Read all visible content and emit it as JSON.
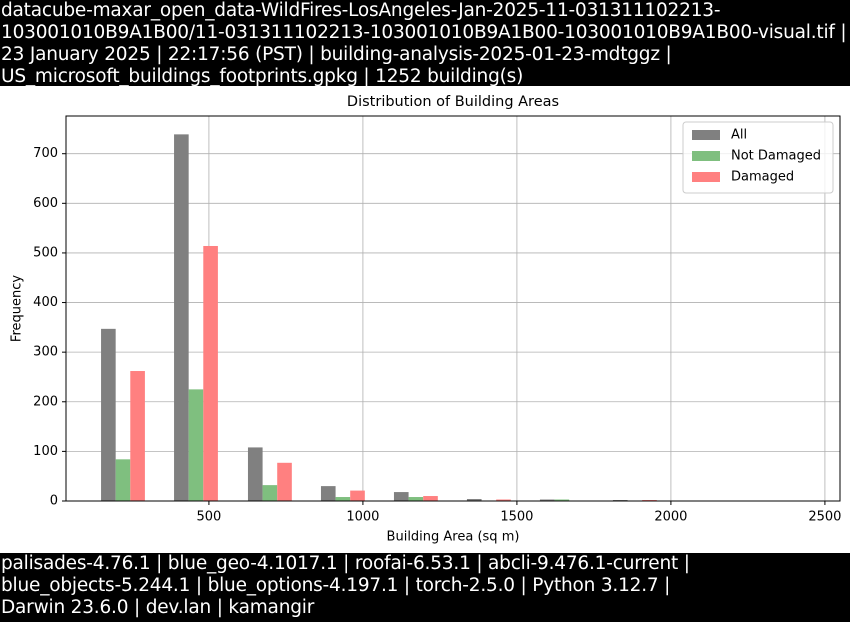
{
  "header": {
    "lines": [
      "datacube-maxar_open_data-WildFires-LosAngeles-Jan-2025-11-031311102213-",
      "103001010B9A1B00/11-031311102213-103001010B9A1B00-103001010B9A1B00-visual.tif |",
      "23 January 2025 | 22:17:56 (PST) | building-analysis-2025-01-23-mdtggz |",
      "US_microsoft_buildings_footprints.gpkg | 1252 building(s)"
    ]
  },
  "footer": {
    "lines": [
      "palisades-4.76.1 | blue_geo-4.1017.1 | roofai-6.53.1 | abcli-9.476.1-current |",
      "blue_objects-5.244.1 | blue_options-4.197.1 | torch-2.5.0 | Python 3.12.7 |",
      "Darwin 23.6.0 | dev.lan | kamangir"
    ]
  },
  "chart_data": {
    "type": "bar",
    "title": "Distribution of Building Areas",
    "x_label": "Building Area (sq m)",
    "y_label": "Frequency",
    "x": [
      221,
      458,
      698,
      935,
      1172,
      1409,
      1646,
      1883,
      2120,
      2357
    ],
    "series": [
      {
        "name": "All",
        "color": "#808080",
        "values": [
          347,
          739,
          108,
          30,
          18,
          4,
          3,
          2,
          1,
          1
        ]
      },
      {
        "name": "Not Damaged",
        "color": "#7fbf7f",
        "values": [
          84,
          225,
          32,
          8,
          8,
          1,
          3,
          0,
          0,
          0
        ]
      },
      {
        "name": "Damaged",
        "color": "#ff8080",
        "values": [
          262,
          514,
          77,
          21,
          10,
          3,
          1,
          2,
          1,
          1
        ]
      }
    ],
    "xlim": [
      36,
      2549
    ],
    "ylim": [
      0,
      776
    ],
    "xticks": [
      500,
      1000,
      1500,
      2000,
      2500
    ],
    "yticks": [
      0,
      100,
      200,
      300,
      400,
      500,
      600,
      700
    ],
    "grid": true,
    "legend": "upper-right"
  }
}
